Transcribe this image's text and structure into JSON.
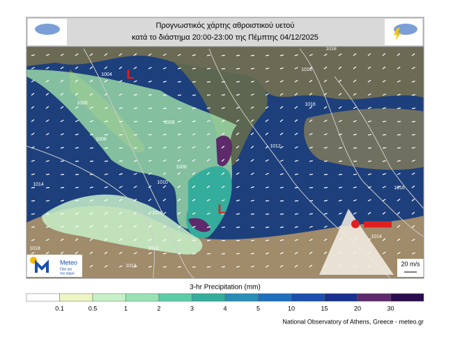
{
  "header": {
    "title_line1": "Προγνωστικός χάρτης αθροιστικού υετού",
    "title_line2": "κατά το διάστημα 20:00-23:00 της Πέμπτης 04/12/2025"
  },
  "map": {
    "lows": [
      "L",
      "L"
    ],
    "isobar_labels": [
      "1004",
      "1006",
      "1008",
      "1008",
      "1008",
      "1010",
      "1010",
      "1012",
      "1012",
      "1014",
      "1014",
      "1014",
      "1016",
      "1016",
      "1016",
      "1018",
      "1018"
    ],
    "wind_legend": "20 m/s",
    "logo": {
      "name": "Meteo",
      "tagline_line1": "Όλα για",
      "tagline_line2": "τον καιρό"
    }
  },
  "colorbar": {
    "title": "3-hr Precipitation (mm)",
    "labels": [
      "0.1",
      "0.5",
      "1",
      "2",
      "3",
      "4",
      "5",
      "10",
      "15",
      "20",
      "30"
    ],
    "colors": [
      "#ffffff",
      "#eef5c4",
      "#c7f0c9",
      "#98e3b5",
      "#5fcaa6",
      "#35ad9c",
      "#2a8db6",
      "#1f6fbf",
      "#1a4fad",
      "#19318f",
      "#5e2a6b",
      "#2a0c4e"
    ]
  },
  "footer": "National Observatory of Athens, Greece - meteo.gr"
}
